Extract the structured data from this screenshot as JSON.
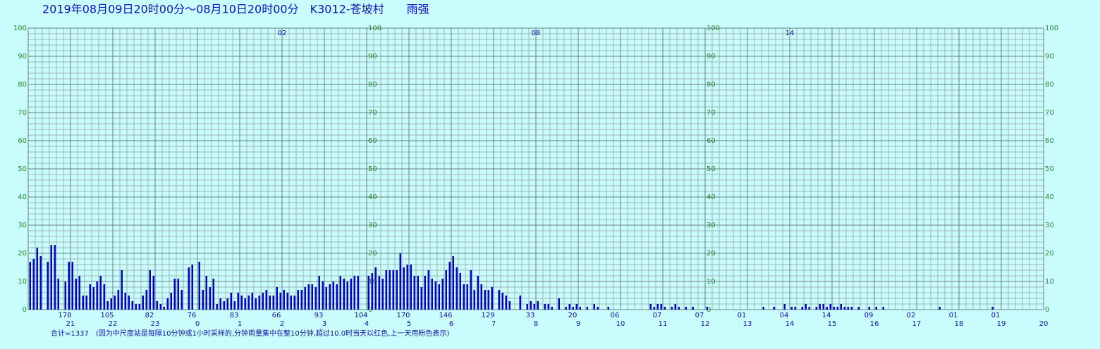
{
  "chart_data": {
    "type": "bar",
    "title": "2019年08月09日20时00分～08月10日20时00分　K3012-苍坡村　　雨强",
    "footnote": "合计=1337　(因为中尺度站是每隔10分钟或1小时采样的,分钟雨量集中在整10分钟,超过10.0时当天以红色,上一天用粉色表示)",
    "color": "#0000c8",
    "ylim": [
      0,
      100
    ],
    "yticks": [
      0,
      10,
      20,
      30,
      40,
      50,
      60,
      70,
      80,
      90,
      100
    ],
    "grid": true,
    "hour_labels": [
      "21",
      "22",
      "23",
      "0",
      "1",
      "2",
      "3",
      "4",
      "5",
      "6",
      "7",
      "8",
      "9",
      "10",
      "11",
      "12",
      "13",
      "14",
      "15",
      "16",
      "17",
      "18",
      "19",
      "20"
    ],
    "hour_totals": [
      "178",
      "105",
      "82",
      "76",
      "83",
      "66",
      "93",
      "104",
      "170",
      "146",
      "129",
      "33",
      "20",
      "06",
      "07",
      "07",
      "01",
      "04",
      "14",
      "09",
      "02",
      "01",
      "01"
    ],
    "top_markers": [
      "02",
      "08",
      "14"
    ],
    "values": [
      17,
      18,
      22,
      19,
      0,
      17,
      23,
      23,
      11,
      0,
      10,
      17,
      17,
      11,
      12,
      5,
      5,
      9,
      8,
      10,
      12,
      9,
      3,
      4,
      5,
      7,
      14,
      6,
      5,
      3,
      2,
      2,
      5,
      7,
      14,
      12,
      3,
      2,
      1,
      4,
      6,
      11,
      11,
      7,
      0,
      15,
      16,
      0,
      17,
      7,
      12,
      8,
      11,
      2,
      4,
      3,
      4,
      6,
      3,
      6,
      5,
      4,
      5,
      6,
      4,
      5,
      6,
      7,
      5,
      5,
      8,
      6,
      7,
      6,
      5,
      5,
      7,
      7,
      8,
      9,
      9,
      8,
      12,
      10,
      8,
      9,
      10,
      9,
      12,
      11,
      10,
      11,
      12,
      12,
      0,
      0,
      12,
      13,
      15,
      12,
      11,
      14,
      14,
      14,
      14,
      20,
      15,
      16,
      16,
      12,
      12,
      8,
      12,
      14,
      11,
      10,
      9,
      11,
      14,
      17,
      19,
      15,
      13,
      9,
      9,
      14,
      7,
      12,
      9,
      7,
      7,
      8,
      0,
      7,
      6,
      5,
      3,
      0,
      0,
      5,
      0,
      2,
      3,
      2,
      3,
      0,
      2,
      2,
      1,
      0,
      4,
      0,
      1,
      2,
      1,
      2,
      1,
      0,
      1,
      0,
      2,
      1,
      0,
      0,
      1,
      0,
      0,
      0,
      0,
      0,
      0,
      0,
      0,
      0,
      0,
      0,
      2,
      1,
      2,
      2,
      1,
      0,
      1,
      2,
      1,
      0,
      1,
      0,
      1,
      0,
      0,
      0,
      1,
      0,
      0,
      0,
      0,
      0,
      0,
      0,
      0,
      0,
      0,
      0,
      0,
      0,
      0,
      0,
      1,
      0,
      0,
      1,
      0,
      0,
      2,
      0,
      1,
      1,
      0,
      1,
      2,
      1,
      0,
      1,
      2,
      2,
      1,
      2,
      1,
      1,
      2,
      1,
      1,
      1,
      0,
      1,
      0,
      0,
      1,
      0,
      1,
      0,
      1,
      0,
      0,
      0,
      0,
      0,
      0,
      0,
      0,
      0,
      0,
      0,
      0,
      0,
      0,
      0,
      1,
      0,
      0,
      0,
      0,
      0,
      0,
      0,
      0,
      0,
      0,
      0,
      0,
      0,
      0,
      1,
      0,
      0,
      0,
      0,
      0,
      0,
      0,
      0,
      0,
      0,
      0,
      0,
      0,
      0
    ]
  }
}
